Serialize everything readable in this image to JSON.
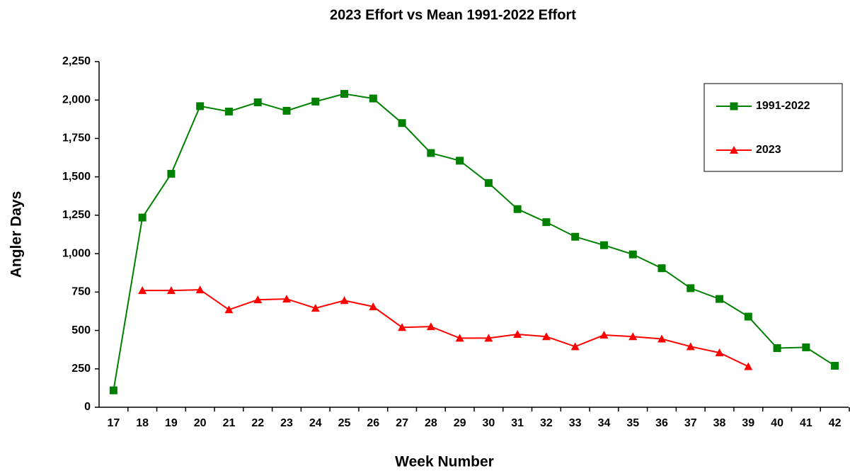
{
  "chart_data": {
    "type": "line",
    "title": "2023 Effort vs Mean 1991-2022 Effort",
    "x_label": "Week Number",
    "y_label": "Angler Days",
    "categories": [
      "17",
      "18",
      "19",
      "20",
      "21",
      "22",
      "23",
      "24",
      "25",
      "26",
      "27",
      "28",
      "29",
      "30",
      "31",
      "32",
      "33",
      "34",
      "35",
      "36",
      "37",
      "38",
      "39",
      "40",
      "41",
      "42"
    ],
    "series": [
      {
        "name": "1991-2022",
        "color": "#008000",
        "marker": "square",
        "values": [
          110,
          1235,
          1520,
          1960,
          1925,
          1985,
          1930,
          1990,
          2040,
          2010,
          1850,
          1655,
          1605,
          1460,
          1290,
          1205,
          1110,
          1055,
          995,
          905,
          775,
          705,
          590,
          385,
          390,
          270
        ]
      },
      {
        "name": "2023",
        "color": "#ff0000",
        "marker": "triangle",
        "values": [
          null,
          760,
          760,
          765,
          635,
          700,
          705,
          645,
          695,
          655,
          520,
          525,
          450,
          450,
          475,
          460,
          395,
          470,
          460,
          445,
          395,
          355,
          265,
          null,
          null,
          null
        ]
      }
    ],
    "ylim": [
      0,
      2250
    ],
    "yticks": [
      0,
      250,
      500,
      750,
      {
        "value": 1000,
        "label": "1,000"
      },
      {
        "value": 1250,
        "label": "1,250"
      },
      {
        "value": 1500,
        "label": "1,500"
      },
      {
        "value": 1750,
        "label": "1,750"
      },
      {
        "value": 2000,
        "label": "2,000"
      },
      {
        "value": 2250,
        "label": "2,250"
      }
    ],
    "legend": "upper right",
    "grid": false
  }
}
